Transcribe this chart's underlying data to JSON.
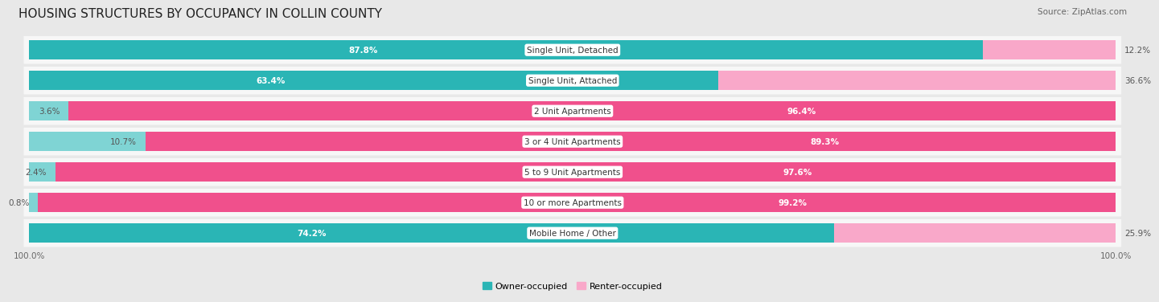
{
  "title": "HOUSING STRUCTURES BY OCCUPANCY IN COLLIN COUNTY",
  "source": "Source: ZipAtlas.com",
  "categories": [
    "Single Unit, Detached",
    "Single Unit, Attached",
    "2 Unit Apartments",
    "3 or 4 Unit Apartments",
    "5 to 9 Unit Apartments",
    "10 or more Apartments",
    "Mobile Home / Other"
  ],
  "owner_pct": [
    87.8,
    63.4,
    3.6,
    10.7,
    2.4,
    0.8,
    74.2
  ],
  "renter_pct": [
    12.2,
    36.6,
    96.4,
    89.3,
    97.6,
    99.2,
    25.9
  ],
  "owner_color": "#2ab5b5",
  "owner_color_light": "#7fd4d4",
  "renter_color": "#f0508c",
  "renter_color_light": "#f9a8c9",
  "bg_color": "#e8e8e8",
  "row_bg": "#f7f7f7",
  "title_fontsize": 11,
  "label_fontsize": 7.5,
  "pct_fontsize": 7.5,
  "tick_fontsize": 7.5,
  "legend_fontsize": 8
}
